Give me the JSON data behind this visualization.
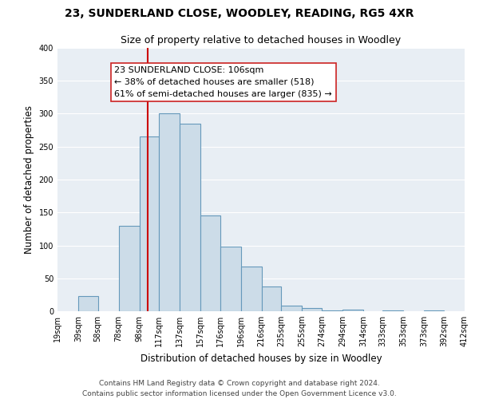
{
  "title": "23, SUNDERLAND CLOSE, WOODLEY, READING, RG5 4XR",
  "subtitle": "Size of property relative to detached houses in Woodley",
  "xlabel": "Distribution of detached houses by size in Woodley",
  "ylabel": "Number of detached properties",
  "bar_color": "#ccdce8",
  "bar_edge_color": "#6699bb",
  "background_color": "#e8eef4",
  "grid_color": "#ffffff",
  "bins": [
    19,
    39,
    58,
    78,
    98,
    117,
    137,
    157,
    176,
    196,
    216,
    235,
    255,
    274,
    294,
    314,
    333,
    353,
    373,
    392,
    412
  ],
  "bin_labels": [
    "19sqm",
    "39sqm",
    "58sqm",
    "78sqm",
    "98sqm",
    "117sqm",
    "137sqm",
    "157sqm",
    "176sqm",
    "196sqm",
    "216sqm",
    "235sqm",
    "255sqm",
    "274sqm",
    "294sqm",
    "314sqm",
    "333sqm",
    "353sqm",
    "373sqm",
    "392sqm",
    "412sqm"
  ],
  "values": [
    0,
    23,
    0,
    130,
    265,
    300,
    285,
    145,
    98,
    68,
    37,
    9,
    5,
    1,
    2,
    0,
    1,
    0,
    1,
    0
  ],
  "ylim": [
    0,
    400
  ],
  "yticks": [
    0,
    50,
    100,
    150,
    200,
    250,
    300,
    350,
    400
  ],
  "vline_x": 106,
  "vline_color": "#cc0000",
  "property_label": "23 SUNDERLAND CLOSE: 106sqm",
  "pct_smaller": 38,
  "n_smaller": 518,
  "pct_larger_semi": 61,
  "n_larger_semi": 835,
  "footer_line1": "Contains HM Land Registry data © Crown copyright and database right 2024.",
  "footer_line2": "Contains public sector information licensed under the Open Government Licence v3.0.",
  "title_fontsize": 10,
  "subtitle_fontsize": 9,
  "axis_label_fontsize": 8.5,
  "tick_fontsize": 7,
  "annotation_fontsize": 8,
  "footer_fontsize": 6.5
}
